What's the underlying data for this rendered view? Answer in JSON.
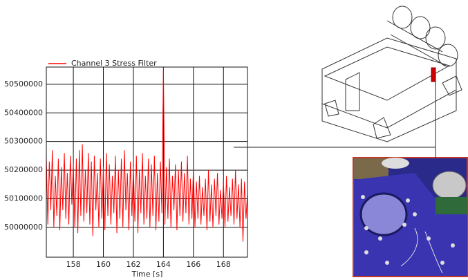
{
  "chart_data": {
    "type": "line",
    "xlabel": "Time [s]",
    "x": [
      156.2,
      156.3,
      156.4,
      156.5,
      156.6,
      156.7,
      156.8,
      156.9,
      157.0,
      157.1,
      157.2,
      157.3,
      157.4,
      157.5,
      157.6,
      157.7,
      157.8,
      157.9,
      158.0,
      158.1,
      158.2,
      158.3,
      158.4,
      158.5,
      158.6,
      158.7,
      158.8,
      158.9,
      159.0,
      159.1,
      159.2,
      159.3,
      159.4,
      159.5,
      159.6,
      159.7,
      159.8,
      159.9,
      160.0,
      160.1,
      160.2,
      160.3,
      160.4,
      160.5,
      160.6,
      160.7,
      160.8,
      160.9,
      161.0,
      161.1,
      161.2,
      161.3,
      161.4,
      161.5,
      161.6,
      161.7,
      161.8,
      161.9,
      162.0,
      162.1,
      162.2,
      162.3,
      162.4,
      162.5,
      162.6,
      162.7,
      162.8,
      162.9,
      163.0,
      163.1,
      163.2,
      163.3,
      163.4,
      163.5,
      163.6,
      163.7,
      163.8,
      163.9,
      164.0,
      164.1,
      164.2,
      164.3,
      164.4,
      164.5,
      164.6,
      164.7,
      164.8,
      164.9,
      165.0,
      165.1,
      165.2,
      165.3,
      165.4,
      165.5,
      165.6,
      165.7,
      165.8,
      165.9,
      166.0,
      166.1,
      166.2,
      166.3,
      166.4,
      166.5,
      166.6,
      166.7,
      166.8,
      166.9,
      167.0,
      167.1,
      167.2,
      167.3,
      167.4,
      167.5,
      167.6,
      167.7,
      167.8,
      167.9,
      168.0,
      168.1,
      168.2,
      168.3,
      168.4,
      168.5,
      168.6,
      168.7,
      168.8,
      168.9,
      169.0,
      169.1,
      169.2,
      169.3,
      169.4,
      169.5,
      169.6
    ],
    "series": [
      {
        "name": "Channel 3 Stress Filter",
        "color": "#ff0000",
        "values": [
          50250000,
          50010000,
          50230000,
          50060000,
          50270000,
          50000000,
          50180000,
          50040000,
          50240000,
          49990000,
          50210000,
          50060000,
          50260000,
          50030000,
          50190000,
          50010000,
          50250000,
          50080000,
          50220000,
          50000000,
          50240000,
          49980000,
          50270000,
          50040000,
          50290000,
          50020000,
          50200000,
          50050000,
          50260000,
          50010000,
          50230000,
          49970000,
          50250000,
          50060000,
          50190000,
          50000000,
          50240000,
          50030000,
          50210000,
          49990000,
          50260000,
          50040000,
          50220000,
          50010000,
          50180000,
          50050000,
          50250000,
          49980000,
          50200000,
          50030000,
          50240000,
          50000000,
          50270000,
          50060000,
          50190000,
          49990000,
          50230000,
          50040000,
          50210000,
          50020000,
          50250000,
          49980000,
          50200000,
          50050000,
          50260000,
          50010000,
          50180000,
          50030000,
          50240000,
          50000000,
          50220000,
          50040000,
          50250000,
          49990000,
          50190000,
          50020000,
          50230000,
          50050000,
          50560000,
          50010000,
          50210000,
          50030000,
          50240000,
          50000000,
          50180000,
          50060000,
          50220000,
          49990000,
          50200000,
          50040000,
          50230000,
          50020000,
          50190000,
          50050000,
          50250000,
          50010000,
          50170000,
          50030000,
          50210000,
          50000000,
          50160000,
          50030000,
          50180000,
          50010000,
          50140000,
          50040000,
          50170000,
          49990000,
          50200000,
          50020000,
          50150000,
          50000000,
          50170000,
          50040000,
          50190000,
          50010000,
          50130000,
          50030000,
          50160000,
          50000000,
          50180000,
          50020000,
          50140000,
          50040000,
          50170000,
          50010000,
          50200000,
          50030000,
          50150000,
          50000000,
          50170000,
          49950000,
          50160000,
          50030000,
          50120000
        ]
      }
    ],
    "xlim": [
      156.2,
      169.6
    ],
    "ylim": [
      49896000,
      50560000
    ],
    "xticks": [
      158,
      160,
      162,
      164,
      166,
      168
    ],
    "yticks": [
      50000000,
      50100000,
      50200000,
      50300000,
      50400000,
      50500000
    ],
    "grid": true
  }
}
